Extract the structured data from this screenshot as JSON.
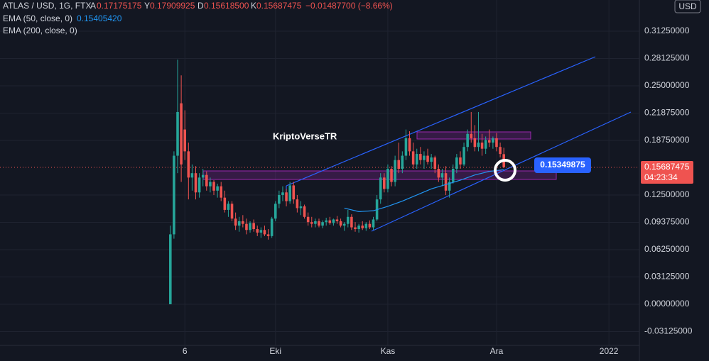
{
  "chart_data": {
    "type": "candlestick",
    "symbol": "ATLAS / USD, 1G, FTX",
    "legend": {
      "open_key": "A",
      "open": "0.17175175",
      "high_key": "Y",
      "high": "0.17909925",
      "low_key": "D",
      "low": "0.15618500",
      "close_key": "K",
      "close": "0.15687475",
      "change": "−0.01487700 (−8.66%)"
    },
    "currency": "USD",
    "countdown": "04:23:34",
    "annotations": {
      "watermark": "KriptoVerseTR",
      "callout": "0.15349875"
    },
    "open": [
      0.0,
      0.08,
      0.17,
      0.23,
      0.2,
      0.175,
      0.145,
      0.15,
      0.128,
      0.145,
      0.148,
      0.135,
      0.14,
      0.13,
      0.135,
      0.122,
      0.108,
      0.115,
      0.098,
      0.09,
      0.095,
      0.092,
      0.085,
      0.093,
      0.086,
      0.082,
      0.085,
      0.08,
      0.078,
      0.098,
      0.115,
      0.125,
      0.128,
      0.118,
      0.136,
      0.12,
      0.11,
      0.112,
      0.1,
      0.094,
      0.092,
      0.095,
      0.09,
      0.094,
      0.096,
      0.093,
      0.097,
      0.095,
      0.09,
      0.092,
      0.1,
      0.088,
      0.086,
      0.09,
      0.087,
      0.092,
      0.088,
      0.097,
      0.12,
      0.145,
      0.132,
      0.155,
      0.14,
      0.165,
      0.155,
      0.17,
      0.19,
      0.175,
      0.16,
      0.172,
      0.165,
      0.17,
      0.163,
      0.168,
      0.155,
      0.145,
      0.15,
      0.13,
      0.14,
      0.155,
      0.168,
      0.16,
      0.18,
      0.195,
      0.19,
      0.18,
      0.185,
      0.178,
      0.188,
      0.185,
      0.19,
      0.18,
      0.17175175
    ],
    "high": [
      0.09,
      0.175,
      0.28,
      0.262,
      0.222,
      0.185,
      0.16,
      0.158,
      0.15,
      0.155,
      0.152,
      0.145,
      0.142,
      0.138,
      0.14,
      0.13,
      0.118,
      0.118,
      0.105,
      0.1,
      0.102,
      0.098,
      0.095,
      0.097,
      0.09,
      0.088,
      0.09,
      0.086,
      0.1,
      0.118,
      0.13,
      0.135,
      0.132,
      0.14,
      0.14,
      0.125,
      0.118,
      0.114,
      0.105,
      0.1,
      0.098,
      0.098,
      0.096,
      0.099,
      0.1,
      0.098,
      0.101,
      0.098,
      0.094,
      0.108,
      0.103,
      0.094,
      0.092,
      0.095,
      0.094,
      0.096,
      0.1,
      0.125,
      0.15,
      0.15,
      0.16,
      0.158,
      0.17,
      0.185,
      0.175,
      0.2,
      0.198,
      0.185,
      0.178,
      0.18,
      0.175,
      0.178,
      0.172,
      0.17,
      0.16,
      0.155,
      0.158,
      0.145,
      0.16,
      0.172,
      0.175,
      0.185,
      0.2,
      0.22,
      0.205,
      0.22,
      0.195,
      0.192,
      0.2,
      0.192,
      0.196,
      0.185,
      0.17909925
    ],
    "low": [
      0.0,
      0.075,
      0.15,
      0.14,
      0.165,
      0.12,
      0.13,
      0.12,
      0.122,
      0.135,
      0.13,
      0.128,
      0.125,
      0.122,
      0.118,
      0.105,
      0.1,
      0.095,
      0.085,
      0.083,
      0.088,
      0.08,
      0.082,
      0.083,
      0.078,
      0.076,
      0.078,
      0.074,
      0.076,
      0.095,
      0.11,
      0.118,
      0.112,
      0.115,
      0.115,
      0.105,
      0.102,
      0.098,
      0.09,
      0.088,
      0.088,
      0.088,
      0.087,
      0.09,
      0.091,
      0.09,
      0.092,
      0.088,
      0.084,
      0.088,
      0.085,
      0.083,
      0.082,
      0.085,
      0.084,
      0.086,
      0.085,
      0.095,
      0.115,
      0.128,
      0.128,
      0.135,
      0.135,
      0.15,
      0.15,
      0.165,
      0.17,
      0.155,
      0.155,
      0.16,
      0.155,
      0.16,
      0.155,
      0.15,
      0.14,
      0.135,
      0.125,
      0.122,
      0.138,
      0.15,
      0.155,
      0.158,
      0.175,
      0.185,
      0.175,
      0.175,
      0.17,
      0.172,
      0.18,
      0.178,
      0.175,
      0.168,
      0.156185
    ],
    "close": [
      0.08,
      0.17,
      0.22,
      0.16,
      0.175,
      0.145,
      0.15,
      0.128,
      0.145,
      0.148,
      0.135,
      0.14,
      0.13,
      0.135,
      0.122,
      0.108,
      0.115,
      0.098,
      0.09,
      0.095,
      0.092,
      0.085,
      0.093,
      0.086,
      0.082,
      0.085,
      0.08,
      0.078,
      0.098,
      0.115,
      0.125,
      0.128,
      0.118,
      0.136,
      0.12,
      0.11,
      0.112,
      0.1,
      0.094,
      0.092,
      0.095,
      0.09,
      0.094,
      0.096,
      0.093,
      0.097,
      0.095,
      0.09,
      0.092,
      0.1,
      0.088,
      0.086,
      0.09,
      0.087,
      0.092,
      0.088,
      0.097,
      0.12,
      0.145,
      0.132,
      0.155,
      0.14,
      0.165,
      0.155,
      0.17,
      0.19,
      0.175,
      0.16,
      0.172,
      0.165,
      0.17,
      0.163,
      0.168,
      0.155,
      0.145,
      0.15,
      0.13,
      0.14,
      0.155,
      0.168,
      0.16,
      0.18,
      0.195,
      0.19,
      0.18,
      0.185,
      0.178,
      0.188,
      0.185,
      0.19,
      0.18,
      0.172,
      0.15687475
    ],
    "up_color": "#26a69a",
    "down_color": "#ef5350",
    "series": [
      {
        "name": "EMA (50, close, 0)",
        "color": "#2196f3",
        "last_label": "0.15405420",
        "x": [
          48,
          52,
          56,
          60,
          64,
          68,
          72,
          76,
          80,
          84,
          88,
          92
        ],
        "values": [
          0.11,
          0.106,
          0.107,
          0.112,
          0.118,
          0.125,
          0.132,
          0.137,
          0.142,
          0.148,
          0.152,
          0.1540542
        ]
      },
      {
        "name": "EMA (200, close, 0)",
        "color": "#b2b5be"
      }
    ],
    "xlim": [
      -47,
      129.4
    ],
    "xticks": [
      {
        "value": 4,
        "label": "6"
      },
      {
        "value": 29,
        "label": "Eki"
      },
      {
        "value": 60,
        "label": "Kas"
      },
      {
        "value": 90,
        "label": "Ara"
      },
      {
        "value": 121,
        "label": "2022"
      }
    ],
    "ylim": [
      -0.0471,
      0.3482
    ],
    "yticks": [
      {
        "value": 0.3125,
        "label": "0.31250000"
      },
      {
        "value": 0.28125,
        "label": "0.28125000"
      },
      {
        "value": 0.25,
        "label": "0.25000000"
      },
      {
        "value": 0.21875,
        "label": "0.21875000"
      },
      {
        "value": 0.1875,
        "label": "0.18750000"
      },
      {
        "value": 0.125,
        "label": "0.12500000"
      },
      {
        "value": 0.09375,
        "label": "0.09375000"
      },
      {
        "value": 0.0625,
        "label": "0.06250000"
      },
      {
        "value": 0.03125,
        "label": "0.03125000"
      },
      {
        "value": 0,
        "label": "0.00000000"
      },
      {
        "value": -0.03125,
        "label": "-0.03125000"
      }
    ],
    "grid": true
  }
}
